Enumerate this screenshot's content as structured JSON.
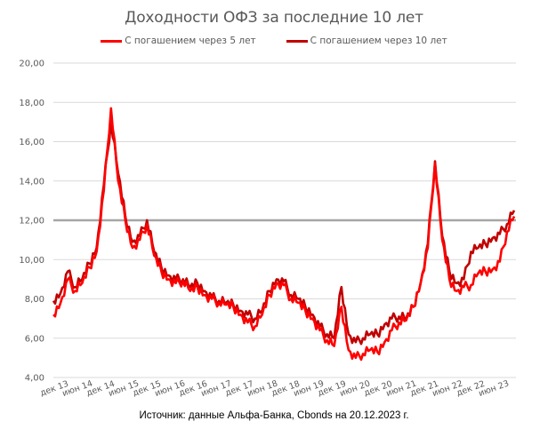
{
  "chart_data": {
    "type": "line",
    "title": "Доходности ОФЗ за последние 10 лет",
    "xlabel": "",
    "ylabel": "",
    "ylim": [
      4,
      20
    ],
    "yticks": [
      "4,00",
      "6,00",
      "8,00",
      "10,00",
      "12,00",
      "14,00",
      "16,00",
      "18,00",
      "20,00"
    ],
    "x_tick_labels": [
      "дек 13",
      "июн 14",
      "дек 14",
      "июн 15",
      "дек 15",
      "июн 16",
      "дек 16",
      "июн 17",
      "дек 17",
      "июн 18",
      "дек 18",
      "июн 19",
      "дек 19",
      "июн 20",
      "дек 20",
      "июн 21",
      "дек 21",
      "июн 22",
      "дек 22",
      "июн 23"
    ],
    "grid": true,
    "legend_position": "top",
    "reference_line": {
      "value": 12,
      "color": "#a6a6a6"
    },
    "x": [
      "дек 13",
      "фев 14",
      "апр 14",
      "июн 14",
      "авг 14",
      "окт 14",
      "ноя 14",
      "дек 14",
      "янв 15",
      "фев 15",
      "апр 15",
      "июн 15",
      "авг 15",
      "окт 15",
      "дек 15",
      "фев 16",
      "апр 16",
      "июн 16",
      "авг 16",
      "окт 16",
      "дек 16",
      "фев 17",
      "апр 17",
      "июн 17",
      "авг 17",
      "окт 17",
      "дек 17",
      "фев 18",
      "апр 18",
      "июн 18",
      "авг 18",
      "окт 18",
      "дек 18",
      "фев 19",
      "апр 19",
      "июн 19",
      "авг 19",
      "окт 19",
      "дек 19",
      "фев 20",
      "мар 20",
      "апр 20",
      "июн 20",
      "авг 20",
      "окт 20",
      "дек 20",
      "фев 21",
      "апр 21",
      "июн 21",
      "авг 21",
      "окт 21",
      "дек 21",
      "фев 22",
      "мар 22",
      "апр 22",
      "июн 22",
      "авг 22",
      "окт 22",
      "дек 22",
      "фев 23",
      "апр 23",
      "июн 23",
      "авг 23",
      "окт 23",
      "дек 23"
    ],
    "series": [
      {
        "name": "С погашением через 5 лет",
        "color": "#ff0000",
        "values": [
          7.2,
          7.8,
          9.0,
          8.4,
          8.8,
          9.6,
          10.4,
          13.5,
          17.7,
          14.0,
          12.0,
          10.6,
          11.0,
          11.8,
          10.2,
          9.4,
          9.0,
          8.8,
          8.9,
          8.4,
          8.6,
          8.2,
          8.0,
          7.8,
          7.7,
          7.6,
          7.2,
          6.8,
          6.6,
          7.2,
          8.2,
          8.8,
          8.7,
          8.0,
          7.8,
          7.4,
          7.0,
          6.4,
          5.9,
          5.6,
          7.6,
          5.4,
          5.0,
          5.2,
          5.4,
          5.3,
          5.8,
          6.4,
          6.8,
          6.9,
          7.6,
          8.8,
          10.6,
          14.9,
          11.0,
          9.0,
          8.4,
          8.6,
          8.7,
          9.3,
          9.4,
          9.5,
          9.9,
          11.4,
          12.2
        ]
      },
      {
        "name": "С погашением через 10 лет",
        "color": "#c00000",
        "values": [
          7.9,
          8.3,
          9.4,
          8.6,
          9.0,
          9.8,
          10.6,
          13.8,
          17.0,
          14.4,
          12.2,
          10.9,
          11.2,
          12.0,
          10.4,
          9.6,
          9.2,
          9.0,
          9.0,
          8.6,
          8.8,
          8.4,
          8.1,
          7.9,
          7.8,
          7.7,
          7.4,
          7.2,
          7.0,
          7.4,
          8.4,
          9.0,
          8.9,
          8.2,
          8.0,
          7.6,
          7.2,
          6.6,
          6.2,
          6.0,
          8.6,
          6.2,
          5.8,
          6.0,
          6.2,
          6.2,
          6.7,
          7.0,
          7.1,
          7.0,
          7.6,
          8.8,
          10.8,
          15.0,
          11.2,
          9.4,
          8.8,
          9.0,
          10.4,
          10.6,
          10.8,
          11.1,
          11.3,
          11.8,
          12.5
        ]
      }
    ]
  },
  "source": "Источник: данные Альфа-Банка, Cbonds на 20.12.2023 г."
}
